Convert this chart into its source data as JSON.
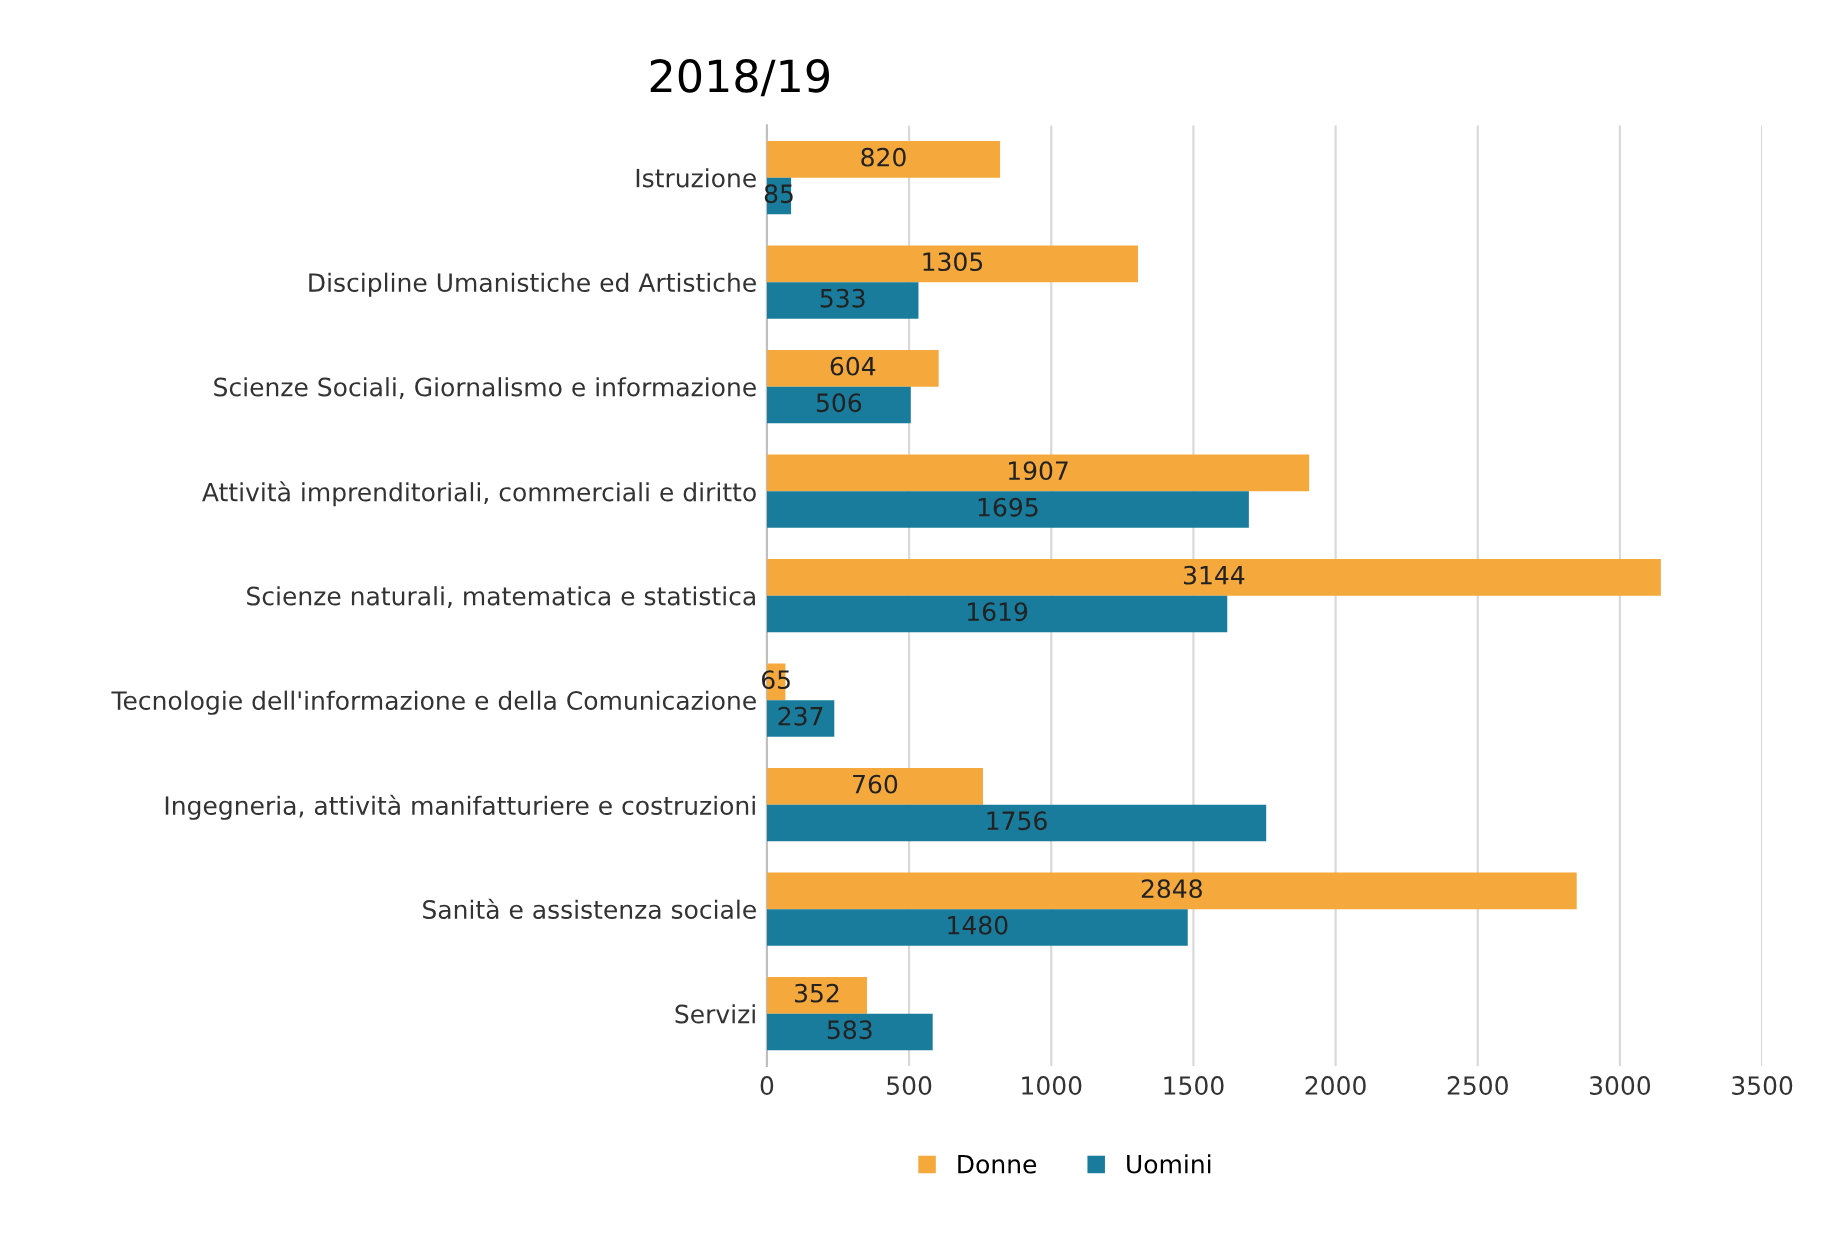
{
  "chart_data": {
    "type": "bar",
    "orientation": "horizontal",
    "title": "2018/19",
    "categories": [
      "Istruzione",
      "Discipline Umanistiche ed Artistiche",
      "Scienze Sociali, Giornalismo e informazione",
      "Attività imprenditoriali, commerciali e diritto",
      "Scienze naturali, matematica e statistica",
      "Tecnologie dell'informazione e della Comunicazione",
      "Ingegneria, attività manifatturiere e costruzioni",
      "Sanità e assistenza sociale",
      "Servizi"
    ],
    "series": [
      {
        "name": "Donne",
        "color": "#f5a83c",
        "values": [
          820,
          1305,
          604,
          1907,
          3144,
          65,
          760,
          2848,
          352
        ]
      },
      {
        "name": "Uomini",
        "color": "#1a7c9c",
        "values": [
          85,
          533,
          506,
          1695,
          1619,
          237,
          1756,
          1480,
          583
        ]
      }
    ],
    "xlim": [
      0,
      3500
    ],
    "xticks": [
      0,
      500,
      1000,
      1500,
      2000,
      2500,
      3000,
      3500
    ],
    "grid": "x",
    "legend": "bottom",
    "data_labels": true
  }
}
